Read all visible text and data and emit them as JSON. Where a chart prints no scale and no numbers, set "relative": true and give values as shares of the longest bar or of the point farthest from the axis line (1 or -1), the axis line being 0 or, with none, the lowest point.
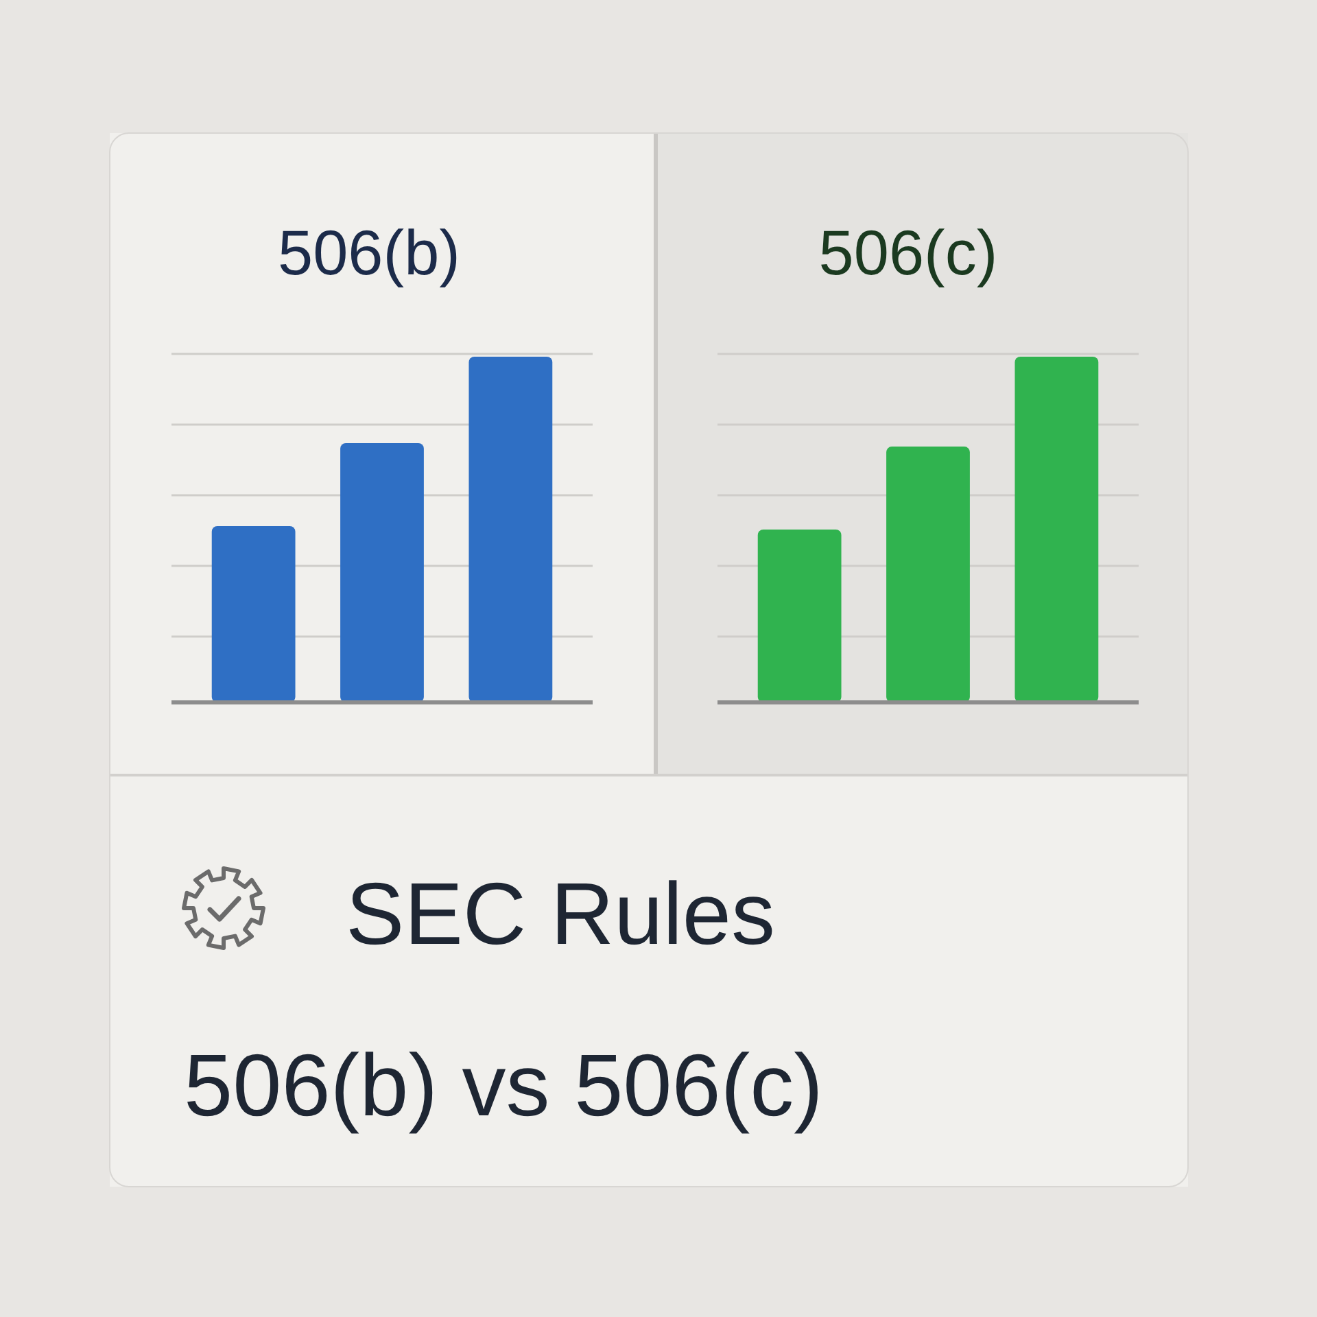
{
  "chart_data": [
    {
      "type": "bar",
      "title": "506(b)",
      "categories": [
        null,
        null,
        null
      ],
      "values": [
        0.51,
        0.75,
        1
      ],
      "color": "#2f6fc4",
      "relative": true,
      "grid": "y"
    },
    {
      "type": "bar",
      "title": "506(c)",
      "categories": [
        null,
        null,
        null
      ],
      "values": [
        0.5,
        0.74,
        1
      ],
      "color": "#30b34f",
      "relative": true,
      "grid": "y"
    },
    {
      "type": "other",
      "title": "SEC Rules",
      "subtitle": "506(b) vs 506(c)"
    }
  ]
}
